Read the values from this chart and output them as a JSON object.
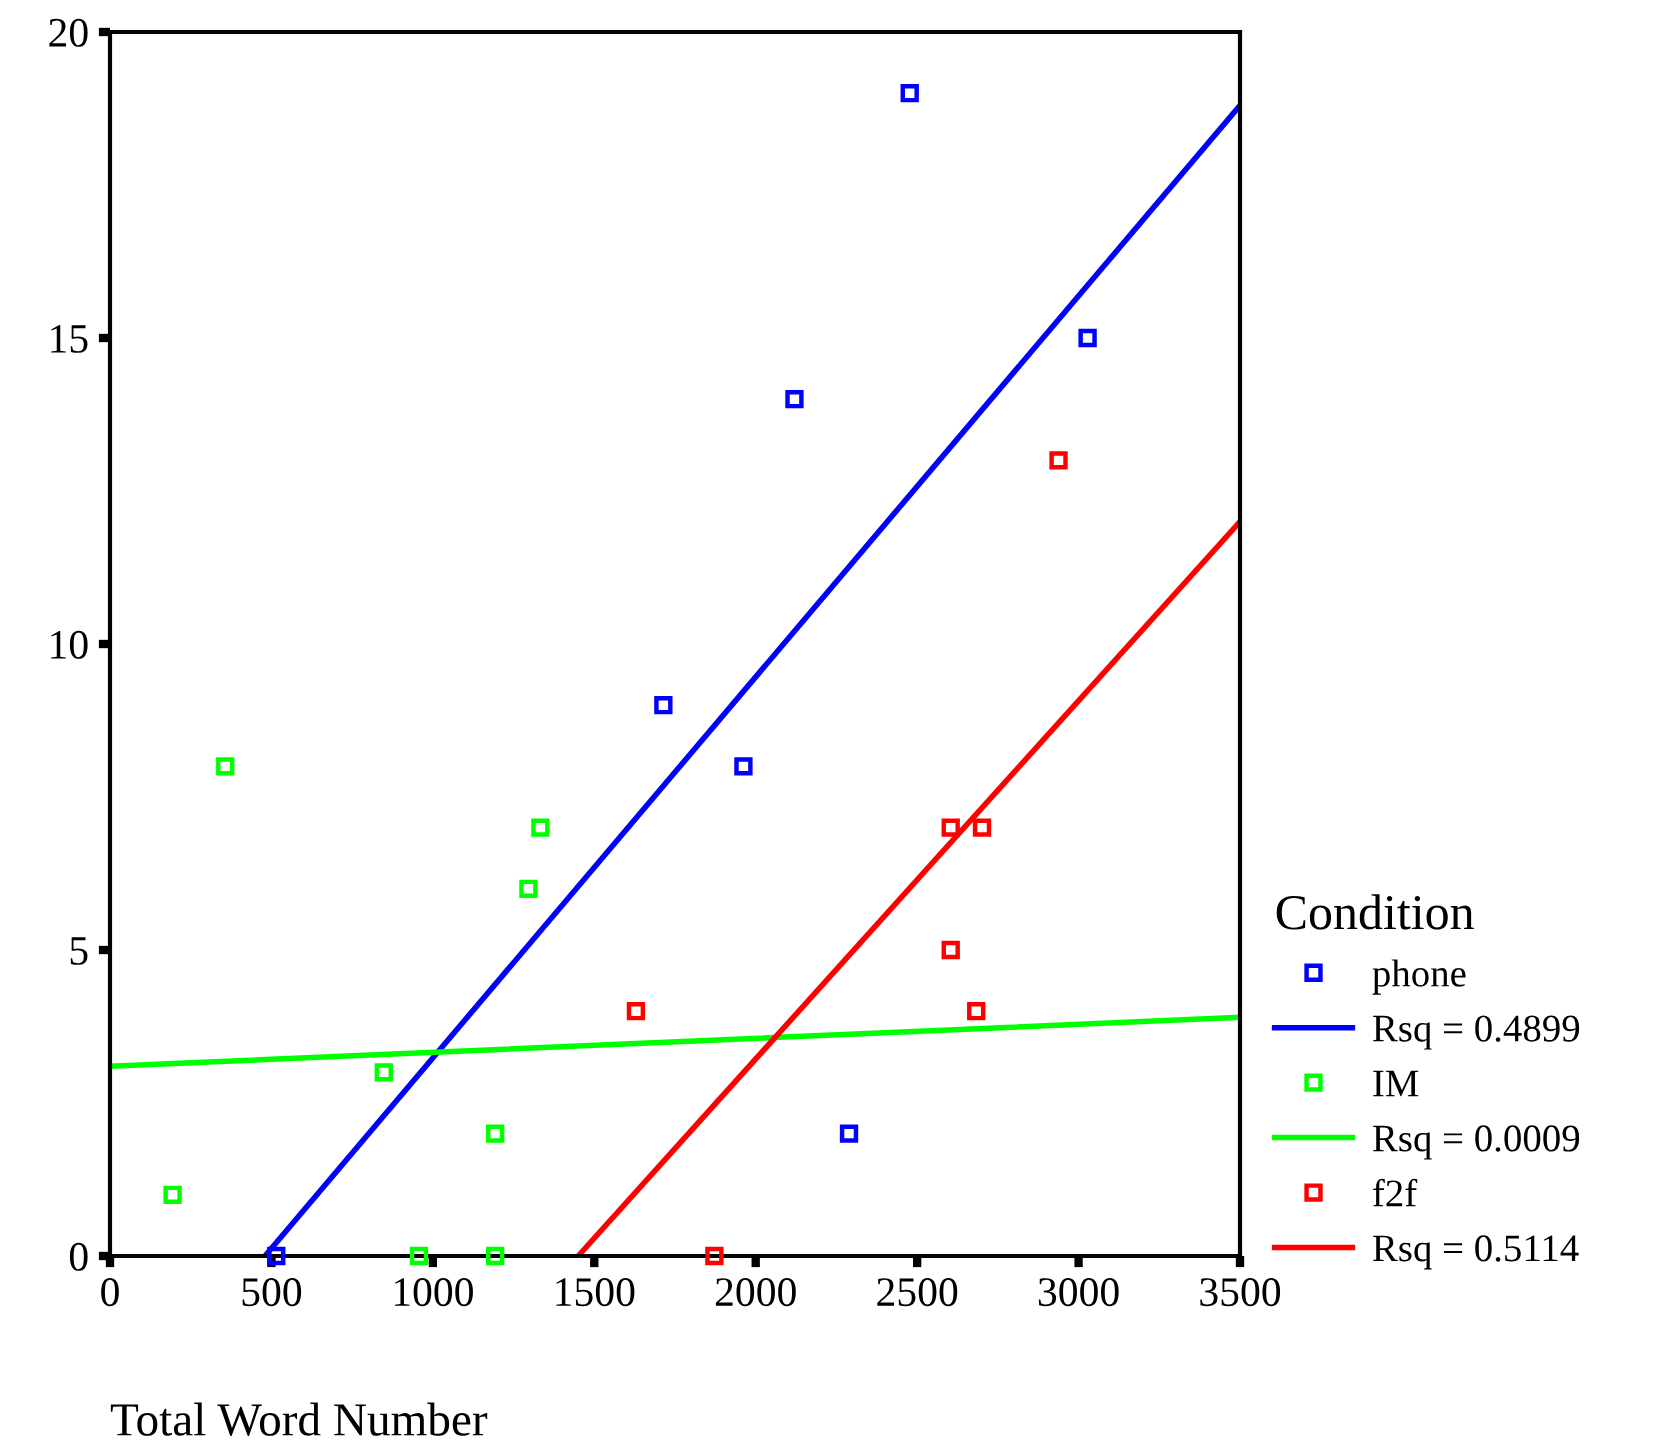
{
  "chart_data": {
    "type": "scatter",
    "xlabel": "Total Word Number",
    "legend_title": "Condition",
    "legend": "right",
    "marker": "square",
    "grid": false,
    "xlim": [
      0,
      3500
    ],
    "xticks": [
      0,
      500,
      1000,
      1500,
      2000,
      2500,
      3000,
      3500
    ],
    "ylim": [
      0,
      20
    ],
    "yticks": [
      0,
      5,
      10,
      15,
      20
    ],
    "series": [
      {
        "name": "phone",
        "color": "#0000ff",
        "x": [
          515,
          1714,
          1962,
          2120,
          2289,
          2477,
          3028
        ],
        "values": [
          0,
          9,
          8,
          14,
          2,
          19,
          15
        ]
      },
      {
        "name": "Rsq = 0.4899",
        "type": "line",
        "marker": "none",
        "color": "#0000ff",
        "x": [
          480,
          3500
        ],
        "values": [
          0,
          18.8
        ]
      },
      {
        "name": "IM",
        "color": "#00ff00",
        "x": [
          194,
          357,
          848,
          957,
          1193,
          1193,
          1296,
          1333
        ],
        "values": [
          1,
          8,
          3,
          0,
          2,
          0,
          6,
          7
        ]
      },
      {
        "name": "Rsq = 0.0009",
        "type": "line",
        "marker": "none",
        "color": "#00ff00",
        "x": [
          0,
          3500
        ],
        "values": [
          3.1,
          3.9
        ]
      },
      {
        "name": "f2f",
        "color": "#ff0000",
        "x": [
          1629,
          1872,
          2604,
          2701,
          2604,
          2683,
          2938
        ],
        "values": [
          4,
          0,
          7,
          7,
          5,
          4,
          13
        ]
      },
      {
        "name": "Rsq = 0.5114",
        "type": "line",
        "marker": "none",
        "color": "#ff0000",
        "x": [
          1450,
          3500
        ],
        "values": [
          0,
          12.0
        ]
      }
    ]
  }
}
